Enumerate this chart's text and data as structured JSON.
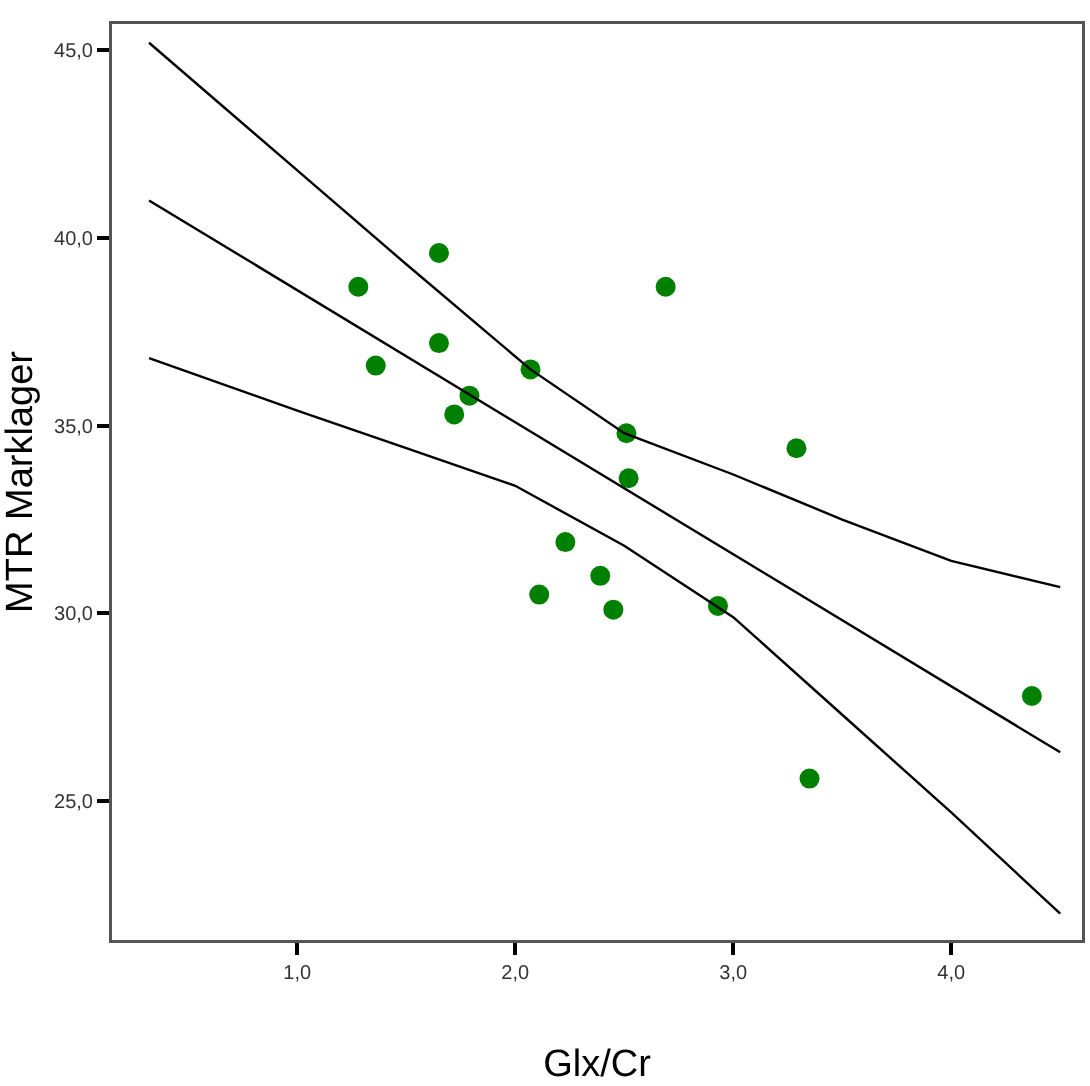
{
  "chart_data": {
    "type": "scatter",
    "xlabel": "Glx/Cr",
    "ylabel": "MTR Marklager",
    "xlim": [
      0.15,
      4.6
    ],
    "ylim": [
      21.3,
      45.7
    ],
    "xticks": [
      {
        "value": 1,
        "label": "1,0"
      },
      {
        "value": 2,
        "label": "2,0"
      },
      {
        "value": 3,
        "label": "3,0"
      },
      {
        "value": 4,
        "label": "4,0"
      }
    ],
    "yticks": [
      {
        "value": 25,
        "label": "25,0"
      },
      {
        "value": 30,
        "label": "30,0"
      },
      {
        "value": 35,
        "label": "35,0"
      },
      {
        "value": 40,
        "label": "40,0"
      },
      {
        "value": 45,
        "label": "45,0"
      }
    ],
    "grid": false,
    "marker": "circle",
    "series": [
      {
        "type": "scatter",
        "color": "#008000",
        "x": [
          1.28,
          1.65,
          2.69,
          1.65,
          1.36,
          2.07,
          1.79,
          1.72,
          2.51,
          3.29,
          2.52,
          2.23,
          2.39,
          2.11,
          2.45,
          2.93,
          4.37,
          3.35
        ],
        "values": [
          38.7,
          39.6,
          38.7,
          37.2,
          36.6,
          36.5,
          35.8,
          35.3,
          34.8,
          34.4,
          33.6,
          31.9,
          31.0,
          30.5,
          30.1,
          30.2,
          27.8,
          25.6
        ]
      },
      {
        "type": "line",
        "color": "#000000",
        "marker": "none",
        "x": [
          0.32,
          4.5
        ],
        "values": [
          41.0,
          26.3
        ]
      },
      {
        "type": "line",
        "color": "#000000",
        "marker": "none",
        "x": [
          0.32,
          1.0,
          1.5,
          2.07,
          2.5,
          3.0,
          3.5,
          4.0,
          4.5
        ],
        "values": [
          45.2,
          41.8,
          39.3,
          36.5,
          34.8,
          33.7,
          32.5,
          31.4,
          30.7
        ]
      },
      {
        "type": "line",
        "color": "#000000",
        "marker": "none",
        "x": [
          0.32,
          1.0,
          1.5,
          2.0,
          2.5,
          3.0,
          3.5,
          4.0,
          4.5
        ],
        "values": [
          36.8,
          35.4,
          34.4,
          33.4,
          31.8,
          29.9,
          27.3,
          24.7,
          22.0
        ]
      }
    ]
  }
}
